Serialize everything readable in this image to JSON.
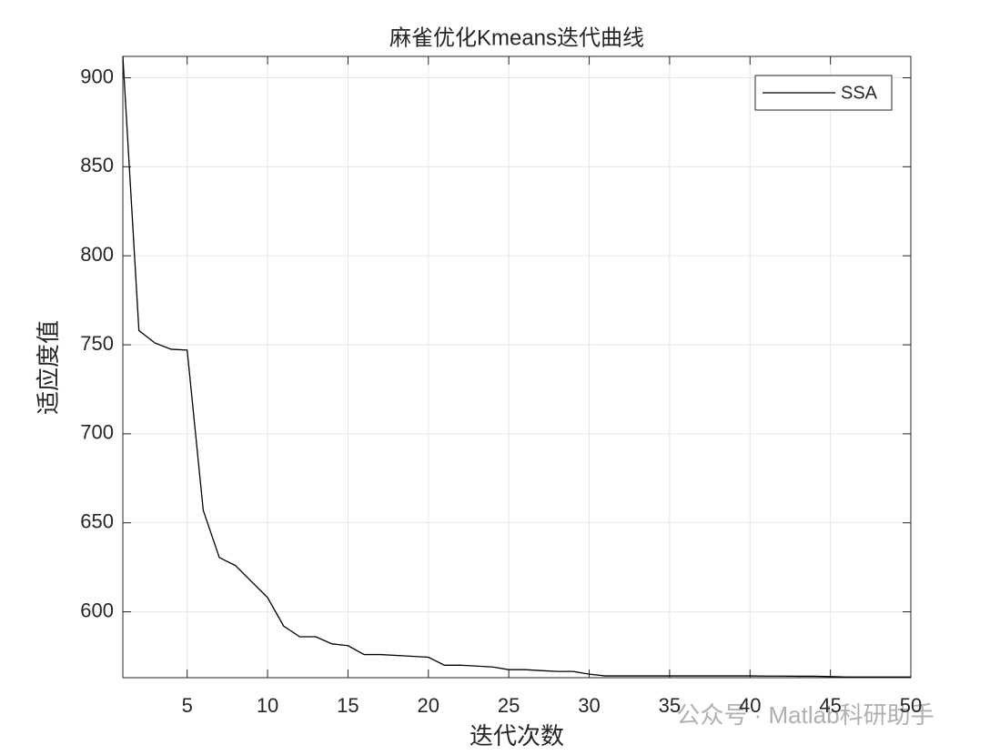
{
  "chart_data": {
    "type": "line",
    "title": "麻雀优化Kmeans迭代曲线",
    "x_label": "迭代次数",
    "y_label": "适应度值",
    "watermark": "公众号 · Matlab科研助手",
    "x": [
      1,
      2,
      3,
      4,
      5,
      6,
      7,
      8,
      9,
      10,
      11,
      12,
      13,
      14,
      15,
      16,
      17,
      18,
      19,
      20,
      21,
      22,
      23,
      24,
      25,
      26,
      27,
      28,
      29,
      30,
      31,
      32,
      33,
      34,
      35,
      36,
      37,
      38,
      39,
      40,
      41,
      42,
      43,
      44,
      45,
      46,
      47,
      48,
      49,
      50
    ],
    "series": [
      {
        "name": "SSA",
        "color": "#000000",
        "values": [
          912,
          758,
          751,
          747.5,
          747,
          657,
          630.5,
          626,
          617,
          608,
          592,
          586,
          586,
          582,
          581,
          576,
          576,
          575.5,
          575,
          574.5,
          570,
          570,
          569.5,
          569,
          567.5,
          567.5,
          567,
          566.5,
          566.5,
          565,
          564,
          564,
          564,
          564,
          564,
          564,
          564,
          564,
          564,
          564,
          563.9,
          563.9,
          563.8,
          563.8,
          563.6,
          563.4,
          563.4,
          563.4,
          563.4,
          563.4
        ]
      }
    ],
    "xlim": [
      1,
      50
    ],
    "xticks": [
      5,
      10,
      15,
      20,
      25,
      30,
      35,
      40,
      45,
      50
    ],
    "ylim": [
      563,
      912
    ],
    "yticks": [
      600,
      650,
      700,
      750,
      800,
      850,
      900
    ],
    "grid": true,
    "legend": "northeast"
  }
}
